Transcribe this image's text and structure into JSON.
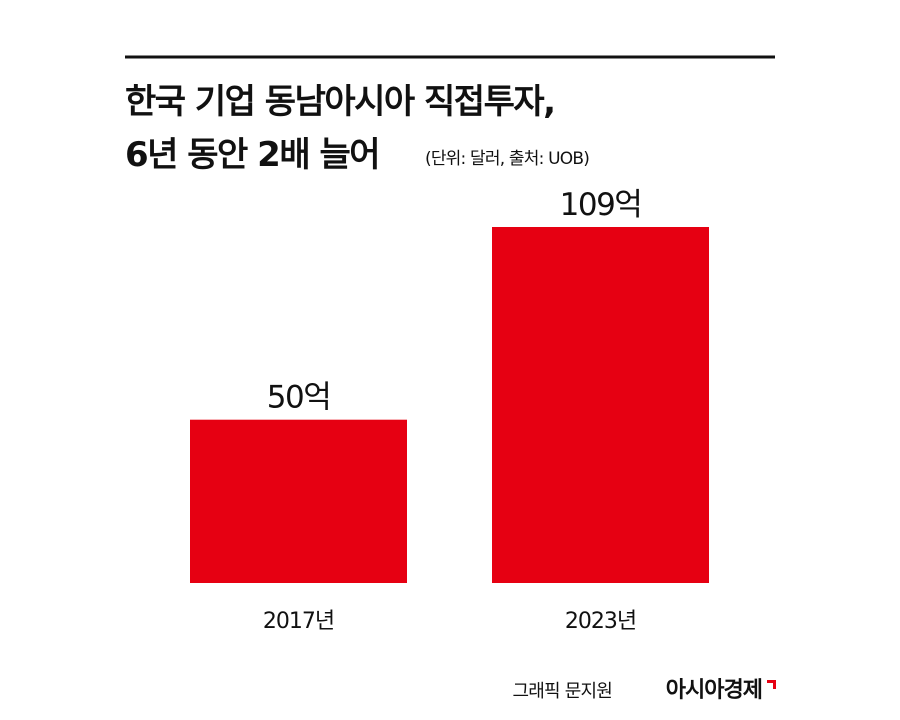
{
  "chart_data": {
    "type": "bar",
    "title": "한국 기업 동남아시아 직접투자,",
    "subtitle": "6년 동안 2배 늘어",
    "note": "(단위: 달러, 출처: UOB)",
    "categories": [
      "2017년",
      "2023년"
    ],
    "values": [
      50,
      109
    ],
    "value_labels": [
      "50억",
      "109억"
    ],
    "color": "#e60012",
    "credit": "그래픽 문지원",
    "source": "아시아경제"
  }
}
